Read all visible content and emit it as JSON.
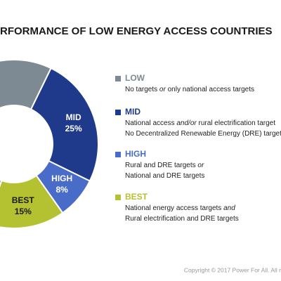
{
  "chart_data": {
    "type": "donut",
    "title": "RFORMANCE OF LOW ENERGY ACCESS COUNTRIES",
    "categories": [
      "LOW",
      "MID",
      "HIGH",
      "BEST"
    ],
    "values": [
      52,
      25,
      8,
      15
    ],
    "value_labels": [
      null,
      "25%",
      "8%",
      "15%"
    ],
    "colors": [
      "#7d8a93",
      "#1f3a8a",
      "#4a6cc9",
      "#b4c130"
    ],
    "descriptions": [
      [
        [
          "No targets ",
          "or",
          " only national access targets"
        ]
      ],
      [
        [
          "National access ",
          "and/or",
          " rural electrification target"
        ],
        [
          "No Decentralized Renewable Energy (DRE) target"
        ]
      ],
      [
        [
          "Rural and DRE targets ",
          "or"
        ],
        [
          "National and DRE targets"
        ]
      ],
      [
        [
          "National energy access targets ",
          "and"
        ],
        [
          "Rural electrification and DRE targets"
        ]
      ]
    ]
  },
  "footer": "Copyright © 2017 Power For All. All r"
}
